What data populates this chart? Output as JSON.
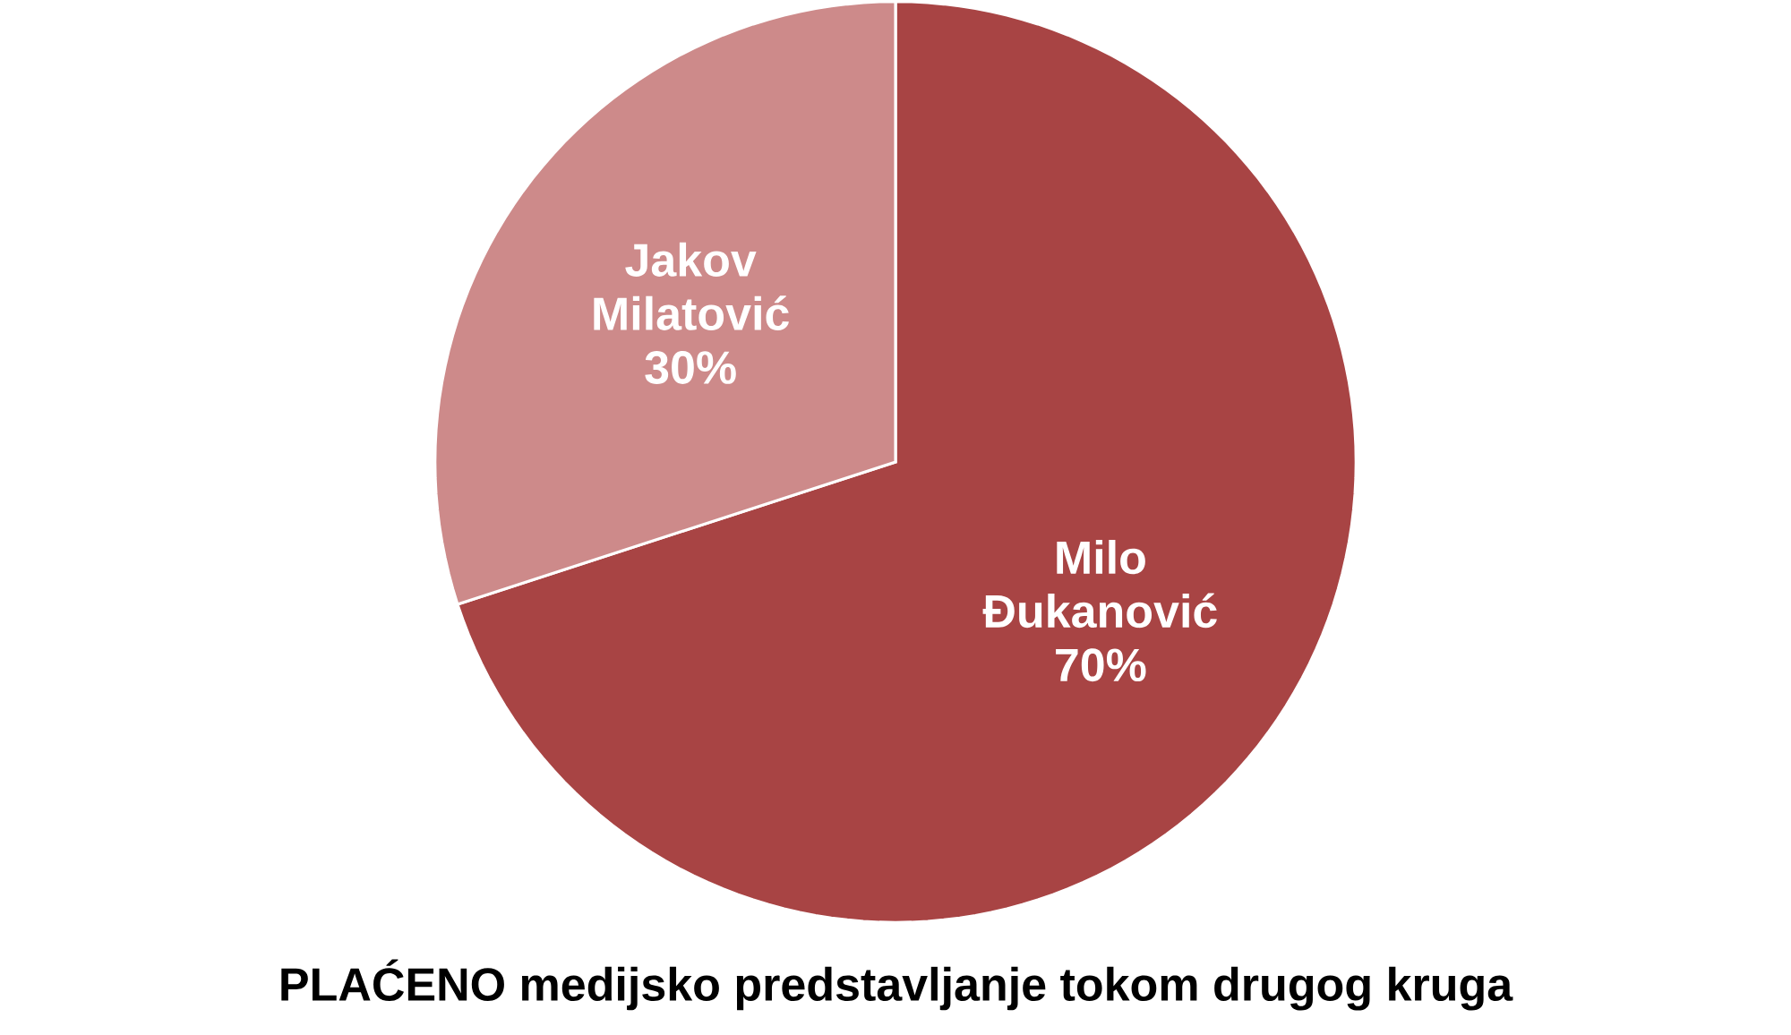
{
  "chart_data": {
    "type": "pie",
    "title": "PLAĆENO medijsko predstavljanje tokom drugog kruga",
    "categories": [
      "Milo Đukanović",
      "Jakov Milatović"
    ],
    "values": [
      70,
      30
    ],
    "value_labels": [
      "70%",
      "30%"
    ],
    "colors": [
      "#a84444",
      "#cd8a8a"
    ]
  }
}
